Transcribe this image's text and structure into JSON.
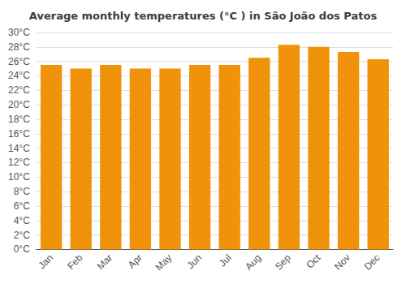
{
  "chart_data": {
    "type": "bar",
    "title": "Average monthly temperatures (°C ) in São João dos Patos",
    "categories": [
      "Jan",
      "Feb",
      "Mar",
      "Apr",
      "May",
      "Jun",
      "Jul",
      "Aug",
      "Sep",
      "Oct",
      "Nov",
      "Dec"
    ],
    "values": [
      25.5,
      25.0,
      25.5,
      25.0,
      25.0,
      25.5,
      25.5,
      26.5,
      28.3,
      28.0,
      27.3,
      26.3
    ],
    "color": "#F0930A",
    "ylim": [
      0,
      30
    ],
    "yticks": [
      {
        "value": 0,
        "label": "0°C"
      },
      {
        "value": 2,
        "label": "2°C"
      },
      {
        "value": 4,
        "label": "4°C"
      },
      {
        "value": 6,
        "label": "6°C"
      },
      {
        "value": 8,
        "label": "8°C"
      },
      {
        "value": 10,
        "label": "10°C"
      },
      {
        "value": 12,
        "label": "12°C"
      },
      {
        "value": 14,
        "label": "14°C"
      },
      {
        "value": 16,
        "label": "16°C"
      },
      {
        "value": 18,
        "label": "18°C"
      },
      {
        "value": 20,
        "label": "20°C"
      },
      {
        "value": 22,
        "label": "22°C"
      },
      {
        "value": 24,
        "label": "24°C"
      },
      {
        "value": 26,
        "label": "26°C"
      },
      {
        "value": 28,
        "label": "28°C"
      },
      {
        "value": 30,
        "label": "30°C"
      }
    ],
    "grid": true
  }
}
